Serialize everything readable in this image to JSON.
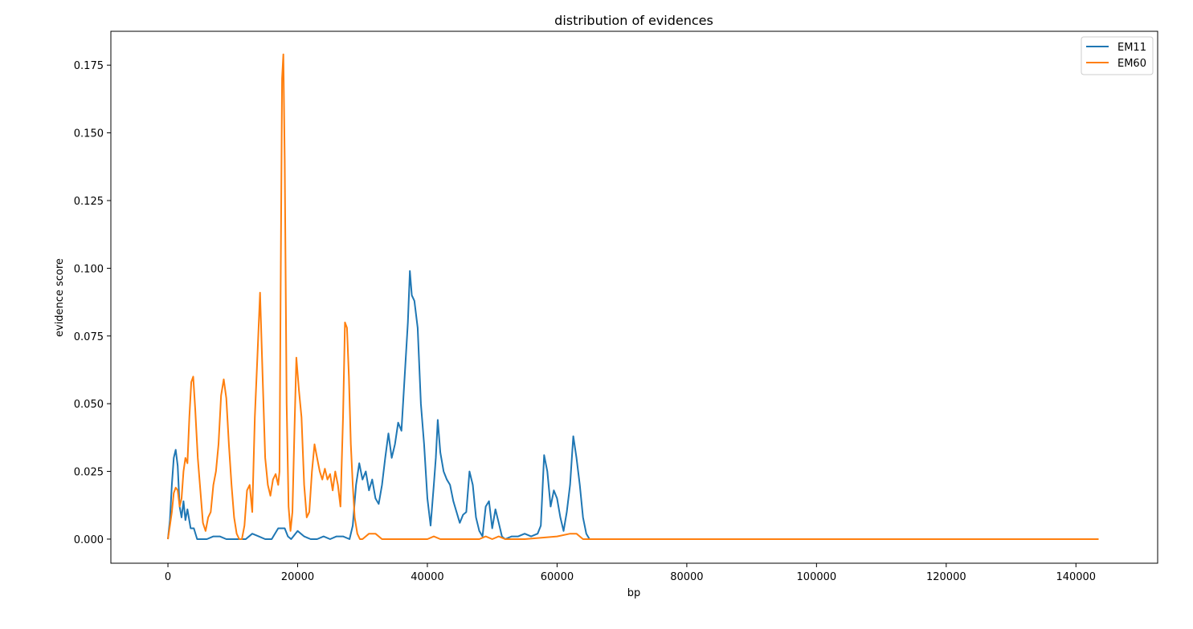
{
  "chart_data": {
    "type": "line",
    "title": "distribution of evidences",
    "xlabel": "bp",
    "ylabel": "evidence score",
    "xlim": [
      -8800,
      152600
    ],
    "ylim": [
      -0.0089,
      0.1875
    ],
    "x_ticks": [
      0,
      20000,
      40000,
      60000,
      80000,
      100000,
      120000,
      140000
    ],
    "x_tick_labels": [
      "0",
      "20000",
      "40000",
      "60000",
      "80000",
      "100000",
      "120000",
      "140000"
    ],
    "y_ticks": [
      0.0,
      0.025,
      0.05,
      0.075,
      0.1,
      0.125,
      0.15,
      0.175
    ],
    "y_tick_labels": [
      "0.000",
      "0.025",
      "0.050",
      "0.075",
      "0.100",
      "0.125",
      "0.150",
      "0.175"
    ],
    "grid": false,
    "legend_position": "top-right",
    "series": [
      {
        "name": "EM11",
        "color": "#1f77b4",
        "x": [
          0,
          300,
          600,
          900,
          1200,
          1500,
          1800,
          2100,
          2400,
          2700,
          3000,
          3500,
          4000,
          4500,
          5000,
          6000,
          7000,
          8000,
          9000,
          10000,
          11000,
          12000,
          13000,
          14000,
          15000,
          16000,
          17000,
          18000,
          18500,
          19000,
          20000,
          21000,
          22000,
          23000,
          24000,
          25000,
          26000,
          27000,
          28000,
          28500,
          29000,
          29500,
          30000,
          30500,
          31000,
          31500,
          32000,
          32500,
          33000,
          33500,
          34000,
          34500,
          35000,
          35500,
          36000,
          36500,
          37000,
          37300,
          37600,
          38000,
          38500,
          39000,
          39500,
          40000,
          40500,
          41000,
          41300,
          41600,
          42000,
          42500,
          43000,
          43500,
          44000,
          44500,
          45000,
          45500,
          46000,
          46500,
          47000,
          47500,
          48000,
          48500,
          49000,
          49500,
          50000,
          50500,
          51000,
          51500,
          52000,
          53000,
          54000,
          55000,
          56000,
          57000,
          57500,
          58000,
          58500,
          59000,
          59500,
          60000,
          60500,
          61000,
          61500,
          62000,
          62500,
          63000,
          63500,
          64000,
          64500,
          65000,
          70000,
          80000,
          90000,
          100000,
          110000,
          120000,
          130000,
          140000,
          143500
        ],
        "y": [
          0.0,
          0.007,
          0.02,
          0.03,
          0.033,
          0.027,
          0.012,
          0.008,
          0.014,
          0.007,
          0.011,
          0.004,
          0.004,
          0.0,
          0.0,
          0.0,
          0.001,
          0.001,
          0.0,
          0.0,
          0.0,
          0.0,
          0.002,
          0.001,
          0.0,
          0.0,
          0.004,
          0.004,
          0.001,
          0.0,
          0.003,
          0.001,
          0.0,
          0.0,
          0.001,
          0.0,
          0.001,
          0.001,
          0.0,
          0.005,
          0.02,
          0.028,
          0.022,
          0.025,
          0.018,
          0.022,
          0.015,
          0.013,
          0.02,
          0.03,
          0.039,
          0.03,
          0.035,
          0.043,
          0.04,
          0.06,
          0.08,
          0.099,
          0.09,
          0.088,
          0.078,
          0.05,
          0.035,
          0.015,
          0.005,
          0.02,
          0.03,
          0.044,
          0.032,
          0.025,
          0.022,
          0.02,
          0.014,
          0.01,
          0.006,
          0.009,
          0.01,
          0.025,
          0.02,
          0.008,
          0.003,
          0.001,
          0.012,
          0.014,
          0.004,
          0.011,
          0.006,
          0.001,
          0.0,
          0.001,
          0.001,
          0.002,
          0.001,
          0.002,
          0.005,
          0.031,
          0.025,
          0.012,
          0.018,
          0.015,
          0.008,
          0.003,
          0.01,
          0.02,
          0.038,
          0.03,
          0.02,
          0.008,
          0.002,
          0.0,
          0.0,
          0.0,
          0.0,
          0.0,
          0.0,
          0.0,
          0.0,
          0.0,
          0.0
        ]
      },
      {
        "name": "EM60",
        "color": "#ff7f0e",
        "x": [
          0,
          300,
          600,
          900,
          1200,
          1500,
          1800,
          2100,
          2400,
          2700,
          3000,
          3300,
          3600,
          3900,
          4200,
          4600,
          5000,
          5400,
          5800,
          6200,
          6600,
          7000,
          7400,
          7800,
          8200,
          8600,
          9000,
          9400,
          9800,
          10200,
          10600,
          11000,
          11400,
          11800,
          12200,
          12600,
          13000,
          13400,
          13800,
          14200,
          14600,
          15000,
          15400,
          15800,
          16200,
          16600,
          17000,
          17200,
          17400,
          17600,
          17800,
          18000,
          18300,
          18600,
          18900,
          19200,
          19500,
          19800,
          20200,
          20600,
          21000,
          21400,
          21800,
          22200,
          22600,
          23000,
          23400,
          23800,
          24200,
          24600,
          25000,
          25400,
          25800,
          26200,
          26600,
          27000,
          27300,
          27600,
          27900,
          28200,
          28500,
          28800,
          29200,
          29600,
          30000,
          31000,
          32000,
          33000,
          40000,
          41000,
          42000,
          48000,
          49000,
          50000,
          51000,
          52000,
          55000,
          60000,
          62000,
          63000,
          64000,
          65000,
          70000,
          80000,
          90000,
          100000,
          110000,
          120000,
          130000,
          140000,
          143500
        ],
        "y": [
          0.0,
          0.005,
          0.01,
          0.017,
          0.019,
          0.018,
          0.012,
          0.015,
          0.025,
          0.03,
          0.028,
          0.045,
          0.058,
          0.06,
          0.048,
          0.03,
          0.018,
          0.006,
          0.003,
          0.008,
          0.01,
          0.02,
          0.025,
          0.035,
          0.053,
          0.059,
          0.052,
          0.035,
          0.02,
          0.008,
          0.002,
          0.0,
          0.0,
          0.005,
          0.018,
          0.02,
          0.01,
          0.045,
          0.068,
          0.091,
          0.06,
          0.03,
          0.02,
          0.016,
          0.022,
          0.024,
          0.02,
          0.025,
          0.1,
          0.17,
          0.179,
          0.14,
          0.05,
          0.012,
          0.003,
          0.01,
          0.04,
          0.067,
          0.055,
          0.045,
          0.02,
          0.008,
          0.01,
          0.025,
          0.035,
          0.03,
          0.025,
          0.022,
          0.026,
          0.022,
          0.024,
          0.018,
          0.025,
          0.02,
          0.012,
          0.045,
          0.08,
          0.078,
          0.06,
          0.035,
          0.02,
          0.008,
          0.002,
          0.0,
          0.0,
          0.002,
          0.002,
          0.0,
          0.0,
          0.001,
          0.0,
          0.0,
          0.001,
          0.0,
          0.001,
          0.0,
          0.0,
          0.001,
          0.002,
          0.002,
          0.0,
          0.0,
          0.0,
          0.0,
          0.0,
          0.0,
          0.0,
          0.0,
          0.0,
          0.0,
          0.0
        ]
      }
    ]
  }
}
